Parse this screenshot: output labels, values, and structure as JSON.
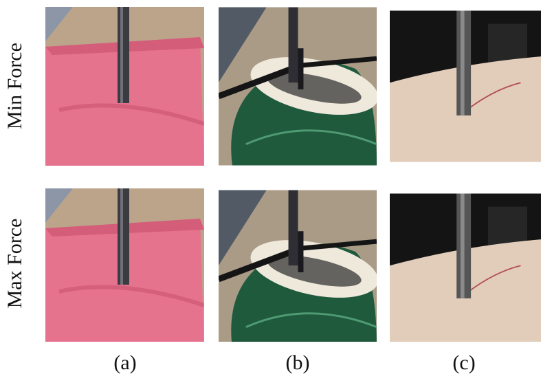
{
  "row_labels": [
    "Min Force",
    "Max Force"
  ],
  "column_labels": [
    "(a)",
    "(b)",
    "(c)"
  ]
}
